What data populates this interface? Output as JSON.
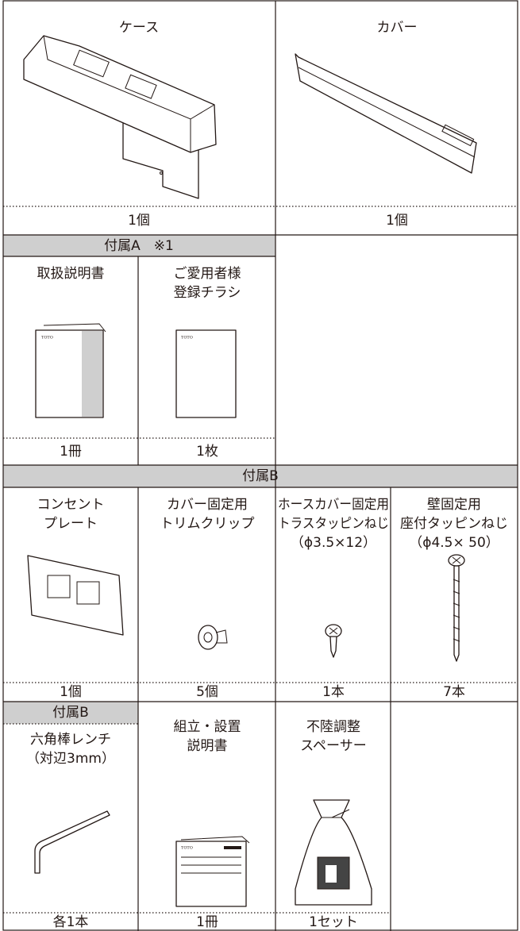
{
  "brand": "TOTO",
  "main": {
    "items": [
      {
        "label": [
          "ケース"
        ],
        "quantity": "1個"
      },
      {
        "label": [
          "カバー"
        ],
        "quantity": "1個"
      }
    ]
  },
  "accessory_a": {
    "header": "付属A　※1",
    "items": [
      {
        "label": [
          "取扱説明書"
        ],
        "quantity": "1冊"
      },
      {
        "label": [
          "ご愛用者様",
          "登録チラシ"
        ],
        "quantity": "1枚"
      }
    ]
  },
  "accessory_b": {
    "header": "付属B",
    "items": [
      {
        "label": [
          "コンセント",
          "プレート"
        ],
        "quantity": "1個"
      },
      {
        "label": [
          "カバー固定用",
          "トリムクリップ"
        ],
        "quantity": "5個"
      },
      {
        "label": [
          "ホースカバー固定用",
          "トラスタッピンねじ",
          "（ϕ3.5×12）"
        ],
        "quantity": "1本"
      },
      {
        "label": [
          "壁固定用",
          "座付タッピンねじ",
          "（ϕ4.5× 50）"
        ],
        "quantity": "7本"
      }
    ]
  },
  "accessory_b2": {
    "header": "付属B",
    "items": [
      {
        "label": [
          "六角棒レンチ",
          "（対辺3mm）"
        ],
        "quantity": "各1本"
      },
      {
        "label": [
          "組立・設置",
          "説明書"
        ],
        "quantity": "1冊"
      },
      {
        "label": [
          "不陸調整",
          "スペーサー"
        ],
        "quantity": "1セット"
      }
    ]
  }
}
